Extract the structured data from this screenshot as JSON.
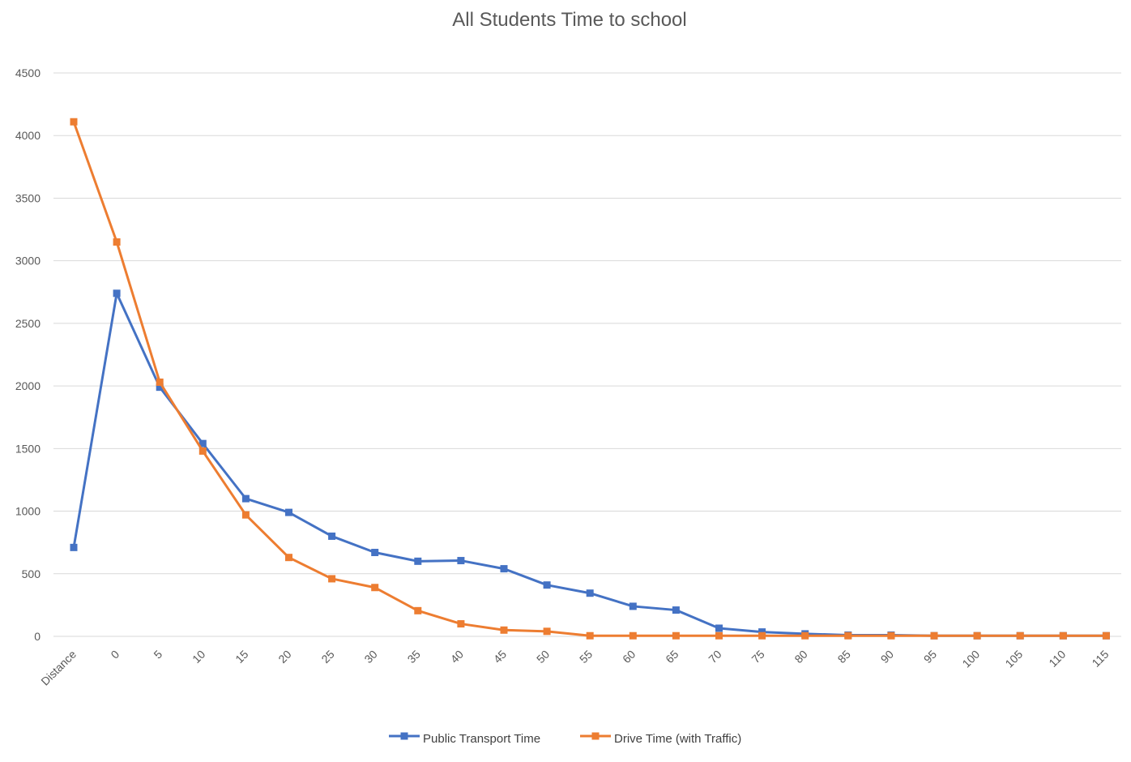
{
  "chart_data": {
    "type": "line",
    "title": "All Students Time to school",
    "categories": [
      "Distance",
      "0",
      "5",
      "10",
      "15",
      "20",
      "25",
      "30",
      "35",
      "40",
      "45",
      "50",
      "55",
      "60",
      "65",
      "70",
      "75",
      "80",
      "85",
      "90",
      "95",
      "100",
      "105",
      "110",
      "115"
    ],
    "yticks": [
      "0",
      "500",
      "1000",
      "1500",
      "2000",
      "2500",
      "3000",
      "3500",
      "4000",
      "4500"
    ],
    "ylim": [
      0,
      4500
    ],
    "grid": true,
    "legend_position": "bottom",
    "series": [
      {
        "name": "Public Transport Time",
        "color": "#4472c4",
        "values": [
          710,
          2740,
          1990,
          1540,
          1100,
          990,
          800,
          670,
          600,
          605,
          540,
          410,
          345,
          240,
          210,
          65,
          35,
          20,
          10,
          10,
          5,
          5,
          5,
          5,
          5
        ]
      },
      {
        "name": "Drive Time (with Traffic)",
        "color": "#ed7d31",
        "values": [
          4110,
          3150,
          2030,
          1480,
          970,
          630,
          460,
          390,
          205,
          100,
          50,
          40,
          5,
          5,
          5,
          5,
          5,
          5,
          5,
          5,
          5,
          5,
          5,
          5,
          5
        ]
      }
    ]
  }
}
